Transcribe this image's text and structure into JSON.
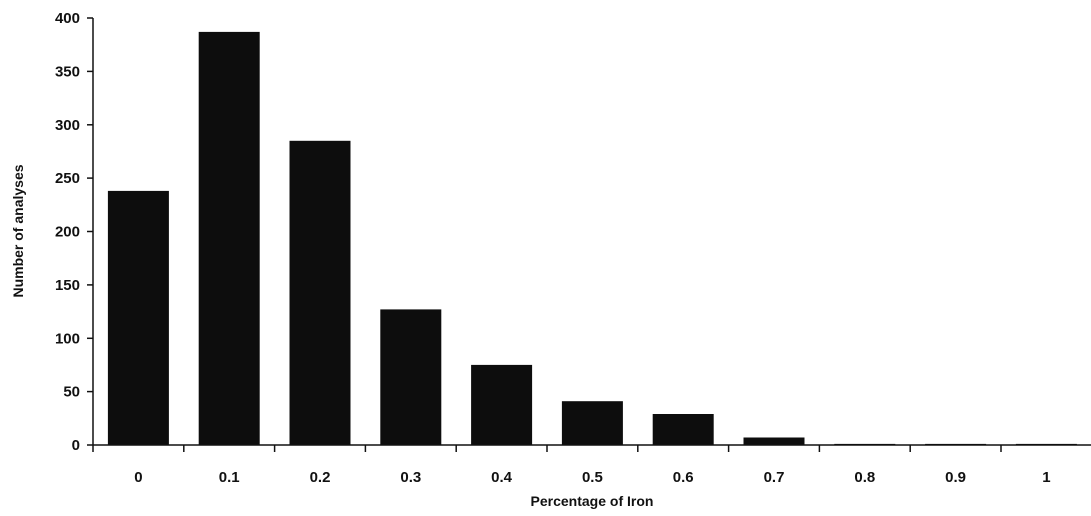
{
  "chart_data": {
    "type": "bar",
    "title": "",
    "xlabel": "Percentage of Iron",
    "ylabel": "Number of analyses",
    "categories": [
      "0",
      "0.1",
      "0.2",
      "0.3",
      "0.4",
      "0.5",
      "0.6",
      "0.7",
      "0.8",
      "0.9",
      "1"
    ],
    "values": [
      238,
      387,
      285,
      127,
      75,
      41,
      29,
      7,
      1,
      1,
      1
    ],
    "ylim": [
      0,
      400
    ],
    "yticks": [
      "0",
      "50",
      "100",
      "150",
      "200",
      "250",
      "300",
      "350",
      "400"
    ],
    "grid": false,
    "bar_color": "#0d0d0d"
  }
}
